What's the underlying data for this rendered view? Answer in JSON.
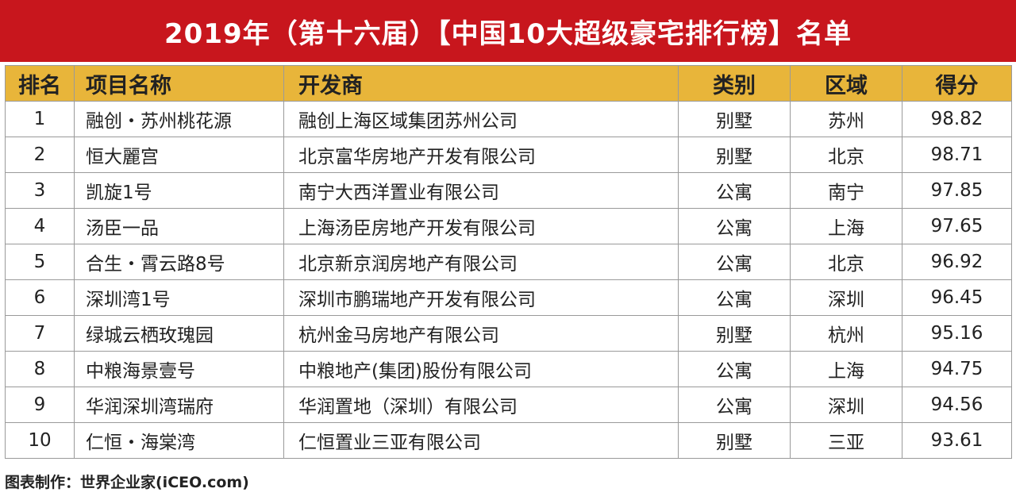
{
  "title": "2019年（第十六届）【中国10大超级豪宅排行榜】名单",
  "table": {
    "headers": [
      "排名",
      "项目名称",
      "开发商",
      "类别",
      "区域",
      "得分"
    ],
    "rows": [
      {
        "rank": "1",
        "name": "融创・苏州桃花源",
        "developer": "融创上海区域集团苏州公司",
        "type": "别墅",
        "area": "苏州",
        "score": "98.82"
      },
      {
        "rank": "2",
        "name": "恒大麗宫",
        "developer": "北京富华房地产开发有限公司",
        "type": "别墅",
        "area": "北京",
        "score": "98.71"
      },
      {
        "rank": "3",
        "name": "凯旋1号",
        "developer": "南宁大西洋置业有限公司",
        "type": "公寓",
        "area": "南宁",
        "score": "97.85"
      },
      {
        "rank": "4",
        "name": "汤臣一品",
        "developer": "上海汤臣房地产开发有限公司",
        "type": "公寓",
        "area": "上海",
        "score": "97.65"
      },
      {
        "rank": "5",
        "name": "合生・霄云路8号",
        "developer": "北京新京润房地产有限公司",
        "type": "公寓",
        "area": "北京",
        "score": "96.92"
      },
      {
        "rank": "6",
        "name": "深圳湾1号",
        "developer": "深圳市鹏瑞地产开发有限公司",
        "type": "公寓",
        "area": "深圳",
        "score": "96.45"
      },
      {
        "rank": "7",
        "name": "绿城云栖玫瑰园",
        "developer": "杭州金马房地产有限公司",
        "type": "别墅",
        "area": "杭州",
        "score": "95.16"
      },
      {
        "rank": "8",
        "name": "中粮海景壹号",
        "developer": "中粮地产(集团)股份有限公司",
        "type": "公寓",
        "area": "上海",
        "score": "94.75"
      },
      {
        "rank": "9",
        "name": "华润深圳湾瑞府",
        "developer": "华润置地（深圳）有限公司",
        "type": "公寓",
        "area": "深圳",
        "score": "94.56"
      },
      {
        "rank": "10",
        "name": "仁恒・海棠湾",
        "developer": "仁恒置业三亚有限公司",
        "type": "别墅",
        "area": "三亚",
        "score": "93.61"
      }
    ]
  },
  "credit": "图表制作：世界企业家(iCEO.com)",
  "colors": {
    "title_bg": "#c8161d",
    "header_bg": "#e8b53a"
  }
}
